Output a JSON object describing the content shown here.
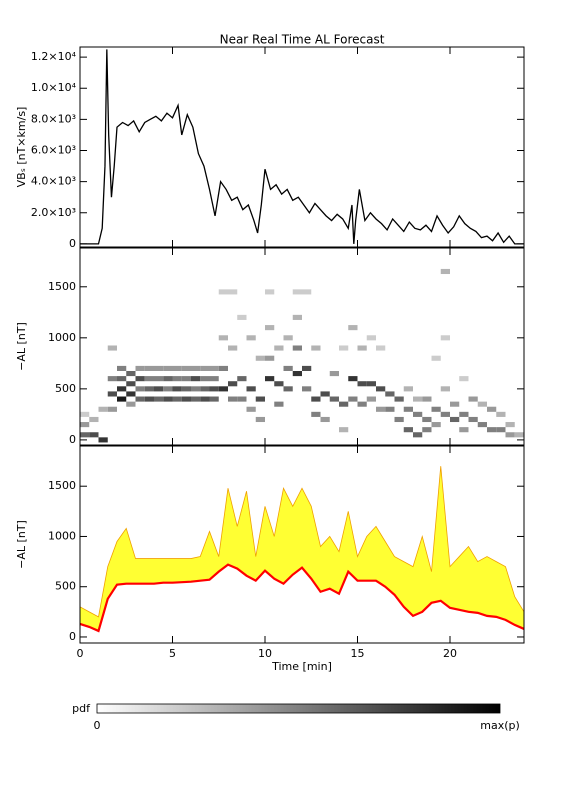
{
  "chart_data": [
    {
      "type": "line",
      "title": "Near Real Time AL Forecast",
      "ylabel": "VBₛ [nT×km/s]",
      "x": [
        0,
        1.0,
        1.2,
        1.35,
        1.45,
        1.55,
        1.7,
        1.85,
        2.0,
        2.3,
        2.6,
        2.9,
        3.2,
        3.5,
        3.8,
        4.1,
        4.4,
        4.7,
        5.0,
        5.3,
        5.5,
        5.8,
        6.1,
        6.4,
        6.7,
        7.0,
        7.3,
        7.6,
        7.9,
        8.2,
        8.5,
        8.8,
        9.1,
        9.4,
        9.6,
        9.8,
        10.0,
        10.3,
        10.6,
        10.9,
        11.2,
        11.5,
        11.8,
        12.1,
        12.4,
        12.7,
        13.0,
        13.3,
        13.6,
        13.9,
        14.2,
        14.5,
        14.7,
        14.8,
        14.9,
        15.1,
        15.4,
        15.7,
        16.0,
        16.3,
        16.6,
        16.9,
        17.2,
        17.5,
        17.8,
        18.1,
        18.4,
        18.7,
        19.0,
        19.3,
        19.6,
        19.9,
        20.2,
        20.5,
        20.8,
        21.1,
        21.4,
        21.7,
        22.0,
        22.3,
        22.6,
        22.9,
        23.2,
        23.5,
        24
      ],
      "values": [
        0,
        0,
        1000,
        5000,
        12500,
        7000,
        3000,
        5000,
        7500,
        7800,
        7600,
        7900,
        7200,
        7800,
        8000,
        8200,
        7900,
        8400,
        8100,
        8900,
        7000,
        8300,
        7500,
        5800,
        5000,
        3500,
        1800,
        4000,
        3500,
        2800,
        3000,
        2200,
        2500,
        1500,
        700,
        2500,
        4800,
        3500,
        3800,
        3200,
        3500,
        2800,
        3000,
        2500,
        2000,
        2600,
        2200,
        1800,
        1500,
        1900,
        1600,
        1000,
        2500,
        0,
        1500,
        3500,
        1500,
        2000,
        1600,
        1300,
        900,
        1600,
        1200,
        800,
        1400,
        1000,
        900,
        1200,
        800,
        1800,
        1200,
        700,
        1100,
        1800,
        1300,
        1000,
        800,
        400,
        500,
        200,
        700,
        100,
        500,
        0,
        0
      ],
      "color": "#000000",
      "xlim": [
        0,
        24
      ],
      "xticks": [
        0,
        5,
        10,
        15,
        20
      ],
      "ylim": [
        -200,
        12650
      ],
      "yticks": [
        0,
        {
          "value": 2000,
          "label": "2.0×10³"
        },
        {
          "value": 4000,
          "label": "4.0×10³"
        },
        {
          "value": 6000,
          "label": "6.0×10³"
        },
        {
          "value": 8000,
          "label": "8.0×10³"
        },
        {
          "value": 10000,
          "label": "1.0×10⁴"
        },
        {
          "value": 12000,
          "label": "1.2×10⁴"
        }
      ]
    },
    {
      "type": "heatmap",
      "ylabel": "−AL [nT]",
      "cells": [
        [
          0.25,
          50,
          0.6
        ],
        [
          0.25,
          150,
          0.4
        ],
        [
          0.25,
          250,
          0.2
        ],
        [
          0.75,
          50,
          0.7
        ],
        [
          0.75,
          200,
          0.3
        ],
        [
          1.25,
          0,
          0.8
        ],
        [
          1.25,
          300,
          0.3
        ],
        [
          1.75,
          450,
          0.7
        ],
        [
          1.75,
          600,
          0.5
        ],
        [
          1.75,
          300,
          0.4
        ],
        [
          1.75,
          900,
          0.3
        ],
        [
          2.25,
          400,
          0.9
        ],
        [
          2.25,
          500,
          0.8
        ],
        [
          2.25,
          600,
          0.6
        ],
        [
          2.25,
          700,
          0.5
        ],
        [
          2.75,
          450,
          0.8
        ],
        [
          2.75,
          550,
          0.7
        ],
        [
          2.75,
          650,
          0.6
        ],
        [
          2.75,
          350,
          0.4
        ],
        [
          3.25,
          400,
          0.6
        ],
        [
          3.25,
          500,
          0.5
        ],
        [
          3.25,
          600,
          0.7
        ],
        [
          3.25,
          700,
          0.4
        ],
        [
          3.75,
          400,
          0.7
        ],
        [
          3.75,
          500,
          0.6
        ],
        [
          3.75,
          600,
          0.5
        ],
        [
          3.75,
          700,
          0.4
        ],
        [
          4.25,
          400,
          0.6
        ],
        [
          4.25,
          500,
          0.7
        ],
        [
          4.25,
          600,
          0.5
        ],
        [
          4.25,
          700,
          0.4
        ],
        [
          4.75,
          400,
          0.7
        ],
        [
          4.75,
          500,
          0.5
        ],
        [
          4.75,
          600,
          0.6
        ],
        [
          4.75,
          700,
          0.4
        ],
        [
          5.25,
          400,
          0.6
        ],
        [
          5.25,
          500,
          0.7
        ],
        [
          5.25,
          600,
          0.5
        ],
        [
          5.25,
          700,
          0.4
        ],
        [
          5.75,
          400,
          0.7
        ],
        [
          5.75,
          500,
          0.6
        ],
        [
          5.75,
          600,
          0.5
        ],
        [
          5.75,
          700,
          0.4
        ],
        [
          6.25,
          400,
          0.6
        ],
        [
          6.25,
          500,
          0.5
        ],
        [
          6.25,
          600,
          0.7
        ],
        [
          6.25,
          700,
          0.4
        ],
        [
          6.75,
          400,
          0.7
        ],
        [
          6.75,
          500,
          0.6
        ],
        [
          6.75,
          600,
          0.5
        ],
        [
          6.75,
          700,
          0.4
        ],
        [
          7.25,
          400,
          0.6
        ],
        [
          7.25,
          500,
          0.7
        ],
        [
          7.25,
          600,
          0.5
        ],
        [
          7.25,
          700,
          0.4
        ],
        [
          7.75,
          500,
          0.8
        ],
        [
          7.75,
          700,
          0.5
        ],
        [
          7.75,
          1000,
          0.3
        ],
        [
          7.75,
          1450,
          0.2
        ],
        [
          8.25,
          550,
          0.7
        ],
        [
          8.25,
          400,
          0.5
        ],
        [
          8.25,
          900,
          0.3
        ],
        [
          8.25,
          1450,
          0.2
        ],
        [
          8.75,
          600,
          0.6
        ],
        [
          8.75,
          400,
          0.5
        ],
        [
          8.75,
          1200,
          0.2
        ],
        [
          9.25,
          500,
          0.7
        ],
        [
          9.25,
          300,
          0.4
        ],
        [
          9.25,
          1000,
          0.3
        ],
        [
          9.75,
          400,
          0.7
        ],
        [
          9.75,
          200,
          0.4
        ],
        [
          9.75,
          800,
          0.3
        ],
        [
          10.25,
          600,
          0.8
        ],
        [
          10.25,
          800,
          0.4
        ],
        [
          10.25,
          1100,
          0.3
        ],
        [
          10.25,
          1450,
          0.2
        ],
        [
          10.75,
          550,
          0.7
        ],
        [
          10.75,
          350,
          0.5
        ],
        [
          10.75,
          900,
          0.3
        ],
        [
          11.25,
          500,
          0.6
        ],
        [
          11.25,
          700,
          0.5
        ],
        [
          11.25,
          1000,
          0.3
        ],
        [
          11.75,
          650,
          0.8
        ],
        [
          11.75,
          900,
          0.5
        ],
        [
          11.75,
          1200,
          0.3
        ],
        [
          11.75,
          1450,
          0.2
        ],
        [
          12.25,
          700,
          0.7
        ],
        [
          12.25,
          500,
          0.5
        ],
        [
          12.25,
          1450,
          0.2
        ],
        [
          12.75,
          400,
          0.7
        ],
        [
          12.75,
          250,
          0.5
        ],
        [
          12.75,
          900,
          0.3
        ],
        [
          13.25,
          450,
          0.7
        ],
        [
          13.25,
          200,
          0.4
        ],
        [
          13.75,
          400,
          0.6
        ],
        [
          13.75,
          650,
          0.4
        ],
        [
          14.25,
          350,
          0.6
        ],
        [
          14.25,
          100,
          0.3
        ],
        [
          14.25,
          900,
          0.2
        ],
        [
          14.75,
          600,
          0.8
        ],
        [
          14.75,
          400,
          0.5
        ],
        [
          14.75,
          1100,
          0.3
        ],
        [
          15.25,
          550,
          0.7
        ],
        [
          15.25,
          350,
          0.5
        ],
        [
          15.25,
          900,
          0.3
        ],
        [
          15.75,
          550,
          0.7
        ],
        [
          15.75,
          400,
          0.4
        ],
        [
          15.75,
          1000,
          0.2
        ],
        [
          16.25,
          500,
          0.7
        ],
        [
          16.25,
          300,
          0.4
        ],
        [
          16.25,
          900,
          0.2
        ],
        [
          16.75,
          450,
          0.6
        ],
        [
          16.75,
          300,
          0.5
        ],
        [
          17.25,
          400,
          0.6
        ],
        [
          17.25,
          200,
          0.5
        ],
        [
          17.75,
          100,
          0.6
        ],
        [
          17.75,
          300,
          0.5
        ],
        [
          17.75,
          500,
          0.3
        ],
        [
          18.25,
          50,
          0.6
        ],
        [
          18.25,
          250,
          0.5
        ],
        [
          18.25,
          400,
          0.3
        ],
        [
          18.75,
          200,
          0.5
        ],
        [
          18.75,
          400,
          0.4
        ],
        [
          18.75,
          100,
          0.5
        ],
        [
          19.25,
          300,
          0.5
        ],
        [
          19.25,
          150,
          0.4
        ],
        [
          19.25,
          800,
          0.2
        ],
        [
          19.75,
          250,
          0.5
        ],
        [
          19.75,
          500,
          0.3
        ],
        [
          19.75,
          1650,
          0.3
        ],
        [
          19.75,
          1000,
          0.2
        ],
        [
          20.25,
          200,
          0.6
        ],
        [
          20.25,
          350,
          0.4
        ],
        [
          20.75,
          250,
          0.5
        ],
        [
          20.75,
          100,
          0.4
        ],
        [
          20.75,
          600,
          0.2
        ],
        [
          21.25,
          200,
          0.5
        ],
        [
          21.25,
          400,
          0.4
        ],
        [
          21.75,
          150,
          0.5
        ],
        [
          21.75,
          350,
          0.3
        ],
        [
          22.25,
          100,
          0.5
        ],
        [
          22.25,
          300,
          0.4
        ],
        [
          22.75,
          100,
          0.5
        ],
        [
          22.75,
          250,
          0.3
        ],
        [
          23.25,
          50,
          0.4
        ],
        [
          23.25,
          150,
          0.3
        ],
        [
          23.75,
          50,
          0.3
        ]
      ],
      "colorbar": {
        "label": "pdf",
        "min_label": "0",
        "max_label": "max(p)"
      },
      "xlim": [
        0,
        24
      ],
      "xticks": [
        0,
        5,
        10,
        15,
        20
      ],
      "ylim": [
        -50,
        1880
      ],
      "yticks": [
        0,
        500,
        1000,
        1500
      ]
    },
    {
      "type": "band",
      "ylabel": "−AL [nT]",
      "xlabel": "Time [min]",
      "x": [
        0,
        0.5,
        1,
        1.5,
        2,
        2.5,
        3,
        3.5,
        4,
        4.5,
        5,
        5.5,
        6,
        6.5,
        7,
        7.5,
        8,
        8.5,
        9,
        9.5,
        10,
        10.5,
        11,
        11.5,
        12,
        12.5,
        13,
        13.5,
        14,
        14.5,
        15,
        15.5,
        16,
        16.5,
        17,
        17.5,
        18,
        18.5,
        19,
        19.5,
        20,
        20.5,
        21,
        21.5,
        22,
        22.5,
        23,
        23.5,
        24
      ],
      "median": [
        130,
        100,
        60,
        380,
        520,
        530,
        530,
        530,
        530,
        540,
        540,
        545,
        550,
        560,
        570,
        650,
        720,
        680,
        610,
        560,
        660,
        580,
        530,
        620,
        690,
        580,
        450,
        480,
        430,
        650,
        560,
        560,
        560,
        500,
        420,
        300,
        210,
        250,
        340,
        360,
        290,
        270,
        250,
        240,
        210,
        200,
        170,
        120,
        80
      ],
      "upper": [
        300,
        250,
        200,
        700,
        950,
        1080,
        780,
        780,
        780,
        780,
        780,
        780,
        780,
        800,
        1050,
        800,
        1480,
        1100,
        1450,
        800,
        1300,
        1000,
        1480,
        1300,
        1480,
        1300,
        900,
        1000,
        850,
        1250,
        800,
        1000,
        1100,
        950,
        800,
        750,
        700,
        1000,
        650,
        1700,
        700,
        800,
        900,
        750,
        800,
        750,
        700,
        400,
        250
      ],
      "median_color": "#ff0000",
      "band_color": "#ffff33",
      "edge_color": "#f0a000",
      "xlim": [
        0,
        24
      ],
      "xticks": [
        0,
        5,
        10,
        15,
        20
      ],
      "ylim": [
        -60,
        1900
      ],
      "yticks": [
        0,
        500,
        1000,
        1500
      ]
    }
  ]
}
